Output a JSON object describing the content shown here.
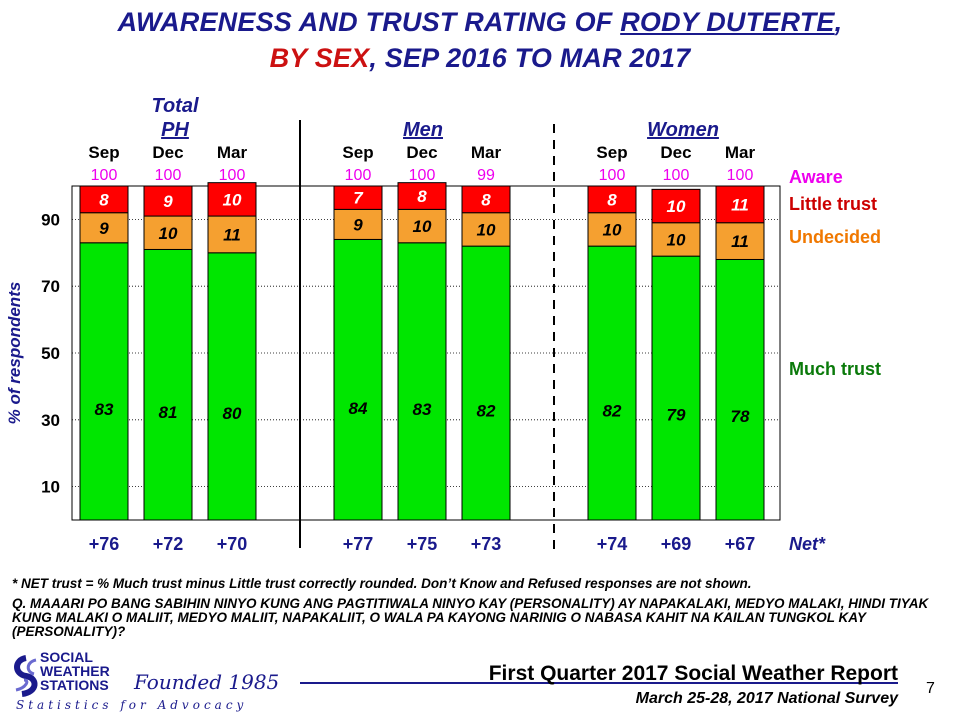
{
  "title": {
    "line1_prefix": "AWARENESS AND TRUST RATING OF ",
    "line1_name": "RODY DUTERTE",
    "line1_suffix": ",",
    "line2_sex": "BY SEX",
    "line2_rest": ", SEP 2016 TO MAR 2017"
  },
  "colors": {
    "much_trust": "#00e600",
    "undecided": "#f5a030",
    "little_trust": "#ff0000",
    "aware_text": "#ee00ee",
    "group_header": "#1a1a8c",
    "legend_little": "#cc0000",
    "legend_undecided": "#f07800",
    "legend_much": "#0a7a0a"
  },
  "chart_data": {
    "type": "bar",
    "stacked": true,
    "ylabel": "% of respondents",
    "yticks": [
      10,
      30,
      50,
      70,
      90
    ],
    "ylim": [
      0,
      100
    ],
    "groups": [
      {
        "name_line1": "Total",
        "name_line2": "PH",
        "categories": [
          "Sep",
          "Dec",
          "Mar"
        ]
      },
      {
        "name_line1": "",
        "name_line2": "Men",
        "categories": [
          "Sep",
          "Dec",
          "Mar"
        ]
      },
      {
        "name_line1": "",
        "name_line2": "Women",
        "categories": [
          "Sep",
          "Dec",
          "Mar"
        ]
      }
    ],
    "aware": [
      "100",
      "100",
      "100",
      "100",
      "100",
      "99",
      "100",
      "100",
      "100"
    ],
    "series": [
      {
        "name": "Much trust",
        "values": [
          83,
          81,
          80,
          84,
          83,
          82,
          82,
          79,
          78
        ]
      },
      {
        "name": "Undecided",
        "values": [
          9,
          10,
          11,
          9,
          10,
          10,
          10,
          10,
          11
        ]
      },
      {
        "name": "Little trust",
        "values": [
          8,
          9,
          10,
          7,
          8,
          8,
          8,
          10,
          11
        ]
      }
    ],
    "net": [
      "+76",
      "+72",
      "+70",
      "+77",
      "+75",
      "+73",
      "+74",
      "+69",
      "+67"
    ],
    "legend": {
      "aware": "Aware",
      "little": "Little trust",
      "undecided": "Undecided",
      "much": "Much trust",
      "net": "Net*"
    }
  },
  "footnote": "* NET trust = % Much trust minus Little trust correctly  rounded. Don’t Know and Refused responses are not shown.",
  "question": "Q. MAAARI PO BANG SABIHIN NINYO KUNG ANG PAGTITIWALA NINYO KAY (PERSONALITY) AY NAPAKALAKI, MEDYO MALAKI, HINDI TIYAK KUNG MALAKI O MALIIT, MEDYO MALIIT, NAPAKALIIT, O WALA PA KAYONG NARINIG O NABASA KAHIT NA KAILAN TUNGKOL KAY (PERSONALITY)?",
  "logo": {
    "line1": "SOCIAL",
    "line2": "WEATHER",
    "line3": "STATIONS",
    "founded": "Founded 1985",
    "tagline": "Statistics for Advocacy"
  },
  "report_title": "First Quarter 2017 Social Weather Report",
  "survey_line": "March 25-28, 2017 National Survey",
  "page_number": "7"
}
